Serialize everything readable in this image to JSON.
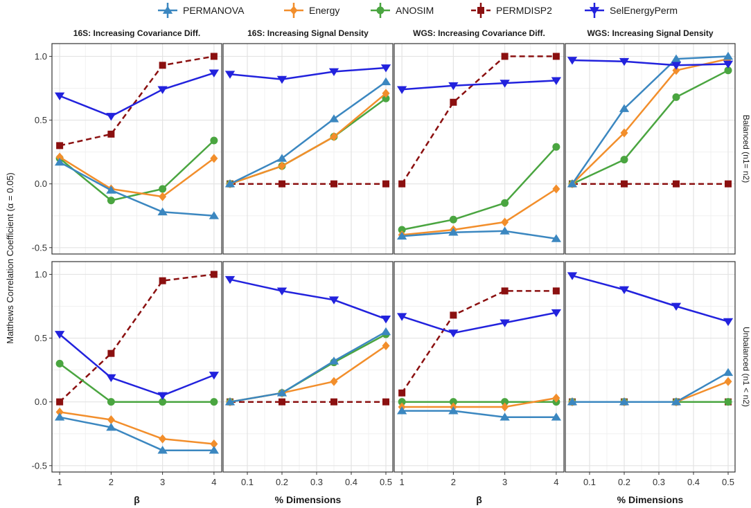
{
  "chart_data": {
    "type": "line",
    "ylabel": "Matthews Correlation Coefficient (α = 0.05)",
    "ylim": [
      -0.55,
      1.1
    ],
    "yticks": [
      -0.5,
      0.0,
      0.5,
      1.0
    ],
    "ytick_labels": [
      "-0.5",
      "0.0",
      "0.5",
      "1.0"
    ],
    "legend": [
      {
        "name": "PERMANOVA",
        "color": "#3b87c0",
        "marker": "triangle-up",
        "dash": "solid"
      },
      {
        "name": "Energy",
        "color": "#f28e2b",
        "marker": "diamond",
        "dash": "solid"
      },
      {
        "name": "ANOSIM",
        "color": "#4aa540",
        "marker": "circle",
        "dash": "solid"
      },
      {
        "name": "PERMDISP2",
        "color": "#8b1010",
        "marker": "square",
        "dash": "dashed"
      },
      {
        "name": "SelEnergyPerm",
        "color": "#2222dd",
        "marker": "triangle-down",
        "dash": "solid"
      }
    ],
    "columns": [
      {
        "title": "16S: Increasing Covariance Diff.",
        "xlabel": "β",
        "xlim": [
          0.85,
          4.15
        ],
        "xticks": [
          1,
          2,
          3,
          4
        ],
        "xtick_labels": [
          "1",
          "2",
          "3",
          "4"
        ],
        "x": [
          1,
          2,
          3,
          4
        ]
      },
      {
        "title": "16S: Increasing Signal Density",
        "xlabel": "% Dimensions",
        "xlim": [
          0.03,
          0.52
        ],
        "xticks": [
          0.1,
          0.2,
          0.3,
          0.4,
          0.5
        ],
        "xtick_labels": [
          "0.1",
          "0.2",
          "0.3",
          "0.4",
          "0.5"
        ],
        "x": [
          0.05,
          0.2,
          0.35,
          0.5
        ]
      },
      {
        "title": "WGS: Increasing Covariance Diff.",
        "xlabel": "β",
        "xlim": [
          0.85,
          4.15
        ],
        "xticks": [
          1,
          2,
          3,
          4
        ],
        "xtick_labels": [
          "1",
          "2",
          "3",
          "4"
        ],
        "x": [
          1,
          2,
          3,
          4
        ]
      },
      {
        "title": "WGS: Increasing Signal Density",
        "xlabel": "% Dimensions",
        "xlim": [
          0.03,
          0.52
        ],
        "xticks": [
          0.1,
          0.2,
          0.3,
          0.4,
          0.5
        ],
        "xtick_labels": [
          "0.1",
          "0.2",
          "0.3",
          "0.4",
          "0.5"
        ],
        "x": [
          0.05,
          0.2,
          0.35,
          0.5
        ]
      }
    ],
    "rows": [
      {
        "label": "Balanced (n1= n2)"
      },
      {
        "label": "Unbalanced (n1 < n2)"
      }
    ],
    "panels": [
      {
        "row": 0,
        "col": 0,
        "series": {
          "PERMANOVA": [
            0.17,
            -0.05,
            -0.22,
            -0.25
          ],
          "Energy": [
            0.21,
            -0.04,
            -0.1,
            0.2
          ],
          "ANOSIM": [
            0.2,
            -0.13,
            -0.04,
            0.34
          ],
          "PERMDISP2": [
            0.3,
            0.39,
            0.93,
            1.0
          ],
          "SelEnergyPerm": [
            0.69,
            0.53,
            0.74,
            0.87
          ]
        }
      },
      {
        "row": 0,
        "col": 1,
        "series": {
          "PERMANOVA": [
            0.0,
            0.2,
            0.51,
            0.8
          ],
          "Energy": [
            0.0,
            0.14,
            0.37,
            0.71
          ],
          "ANOSIM": [
            0.0,
            0.14,
            0.37,
            0.67
          ],
          "PERMDISP2": [
            0.0,
            0.0,
            0.0,
            0.0
          ],
          "SelEnergyPerm": [
            0.86,
            0.82,
            0.88,
            0.91
          ]
        }
      },
      {
        "row": 0,
        "col": 2,
        "series": {
          "PERMANOVA": [
            -0.41,
            -0.38,
            -0.37,
            -0.43
          ],
          "Energy": [
            -0.4,
            -0.36,
            -0.3,
            -0.04
          ],
          "ANOSIM": [
            -0.36,
            -0.28,
            -0.15,
            0.29
          ],
          "PERMDISP2": [
            0.0,
            0.64,
            1.0,
            1.0
          ],
          "SelEnergyPerm": [
            0.74,
            0.77,
            0.79,
            0.81
          ]
        }
      },
      {
        "row": 0,
        "col": 3,
        "series": {
          "PERMANOVA": [
            0.0,
            0.59,
            0.98,
            1.0
          ],
          "Energy": [
            0.0,
            0.4,
            0.89,
            0.98
          ],
          "ANOSIM": [
            0.0,
            0.19,
            0.68,
            0.89
          ],
          "PERMDISP2": [
            0.0,
            0.0,
            0.0,
            0.0
          ],
          "SelEnergyPerm": [
            0.97,
            0.96,
            0.93,
            0.94
          ]
        }
      },
      {
        "row": 1,
        "col": 0,
        "series": {
          "PERMANOVA": [
            -0.12,
            -0.2,
            -0.38,
            -0.38
          ],
          "Energy": [
            -0.08,
            -0.14,
            -0.29,
            -0.33
          ],
          "ANOSIM": [
            0.3,
            0.0,
            0.0,
            0.0
          ],
          "PERMDISP2": [
            0.0,
            0.38,
            0.95,
            1.0
          ],
          "SelEnergyPerm": [
            0.53,
            0.19,
            0.05,
            0.21
          ]
        }
      },
      {
        "row": 1,
        "col": 1,
        "series": {
          "PERMANOVA": [
            0.0,
            0.07,
            0.32,
            0.55
          ],
          "Energy": [
            0.0,
            0.07,
            0.16,
            0.44
          ],
          "ANOSIM": [
            0.0,
            0.07,
            0.31,
            0.53
          ],
          "PERMDISP2": [
            0.0,
            0.0,
            0.0,
            0.0
          ],
          "SelEnergyPerm": [
            0.96,
            0.87,
            0.8,
            0.65
          ]
        }
      },
      {
        "row": 1,
        "col": 2,
        "series": {
          "PERMANOVA": [
            -0.07,
            -0.07,
            -0.12,
            -0.12
          ],
          "Energy": [
            -0.04,
            -0.04,
            -0.04,
            0.03
          ],
          "ANOSIM": [
            0.0,
            0.0,
            0.0,
            0.0
          ],
          "PERMDISP2": [
            0.07,
            0.68,
            0.87,
            0.87
          ],
          "SelEnergyPerm": [
            0.67,
            0.54,
            0.62,
            0.7
          ]
        }
      },
      {
        "row": 1,
        "col": 3,
        "series": {
          "PERMANOVA": [
            0.0,
            0.0,
            0.0,
            0.23
          ],
          "Energy": [
            0.0,
            0.0,
            0.0,
            0.16
          ],
          "ANOSIM": [
            0.0,
            0.0,
            0.0,
            0.0
          ],
          "PERMDISP2": [
            0.0,
            0.0,
            0.0,
            0.0
          ],
          "SelEnergyPerm": [
            0.99,
            0.88,
            0.75,
            0.63
          ]
        }
      }
    ]
  }
}
